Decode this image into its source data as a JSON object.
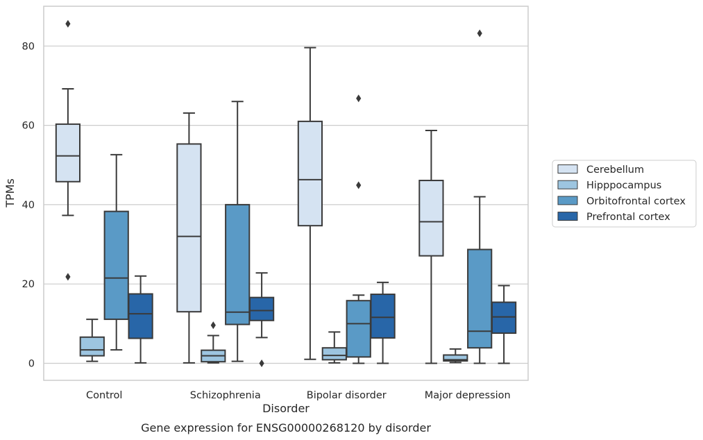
{
  "chart_data": {
    "type": "box",
    "caption": "Gene expression for ENSG00000268120 by disorder",
    "xlabel": "Disorder",
    "ylabel": "TPMs",
    "ylim": [
      -4,
      90
    ],
    "yticks": [
      0,
      20,
      40,
      60,
      80
    ],
    "grid": true,
    "legend_position": "right",
    "categories": [
      "Control",
      "Schizophrenia",
      "Bipolar disorder",
      "Major depression"
    ],
    "series": [
      {
        "name": "Cerebellum",
        "color": "#d5e3f2",
        "boxes": [
          {
            "whisker_low": 37.3,
            "q1": 45.8,
            "median": 52.3,
            "q3": 60.3,
            "whisker_high": 69.2,
            "outliers": [
              85.6,
              21.8
            ]
          },
          {
            "whisker_low": 0.1,
            "q1": 13.0,
            "median": 32.0,
            "q3": 55.3,
            "whisker_high": 63.1,
            "outliers": []
          },
          {
            "whisker_low": 1.0,
            "q1": 34.7,
            "median": 46.3,
            "q3": 61.0,
            "whisker_high": 79.6,
            "outliers": []
          },
          {
            "whisker_low": 0.0,
            "q1": 27.1,
            "median": 35.7,
            "q3": 46.1,
            "whisker_high": 58.7,
            "outliers": []
          }
        ]
      },
      {
        "name": "Hipppocampus",
        "color": "#9dc5e0",
        "boxes": [
          {
            "whisker_low": 0.5,
            "q1": 1.9,
            "median": 3.4,
            "q3": 6.6,
            "whisker_high": 11.1,
            "outliers": []
          },
          {
            "whisker_low": 0.1,
            "q1": 0.4,
            "median": 1.9,
            "q3": 3.3,
            "whisker_high": 7.0,
            "outliers": [
              9.6
            ]
          },
          {
            "whisker_low": 0.1,
            "q1": 0.9,
            "median": 2.0,
            "q3": 3.9,
            "whisker_high": 7.9,
            "outliers": []
          },
          {
            "whisker_low": 0.2,
            "q1": 0.6,
            "median": 0.9,
            "q3": 2.1,
            "whisker_high": 3.6,
            "outliers": []
          }
        ]
      },
      {
        "name": "Orbitofrontal cortex",
        "color": "#5a9ac6",
        "boxes": [
          {
            "whisker_low": 3.4,
            "q1": 11.1,
            "median": 21.5,
            "q3": 38.3,
            "whisker_high": 52.6,
            "outliers": []
          },
          {
            "whisker_low": 0.5,
            "q1": 9.8,
            "median": 12.9,
            "q3": 40.0,
            "whisker_high": 66.0,
            "outliers": []
          },
          {
            "whisker_low": 0.0,
            "q1": 1.6,
            "median": 10.0,
            "q3": 15.8,
            "whisker_high": 17.2,
            "outliers": [
              66.8,
              44.9
            ]
          },
          {
            "whisker_low": 0.0,
            "q1": 3.9,
            "median": 8.1,
            "q3": 28.7,
            "whisker_high": 42.0,
            "outliers": [
              83.2
            ]
          }
        ]
      },
      {
        "name": "Prefrontal cortex",
        "color": "#2866a8",
        "boxes": [
          {
            "whisker_low": 0.1,
            "q1": 6.3,
            "median": 12.5,
            "q3": 17.5,
            "whisker_high": 22.0,
            "outliers": []
          },
          {
            "whisker_low": 6.5,
            "q1": 10.8,
            "median": 13.3,
            "q3": 16.6,
            "whisker_high": 22.8,
            "outliers": [
              0.0
            ]
          },
          {
            "whisker_low": 0.0,
            "q1": 6.4,
            "median": 11.6,
            "q3": 17.4,
            "whisker_high": 20.4,
            "outliers": []
          },
          {
            "whisker_low": 0.0,
            "q1": 7.6,
            "median": 11.7,
            "q3": 15.4,
            "whisker_high": 19.6,
            "outliers": []
          }
        ]
      }
    ]
  }
}
